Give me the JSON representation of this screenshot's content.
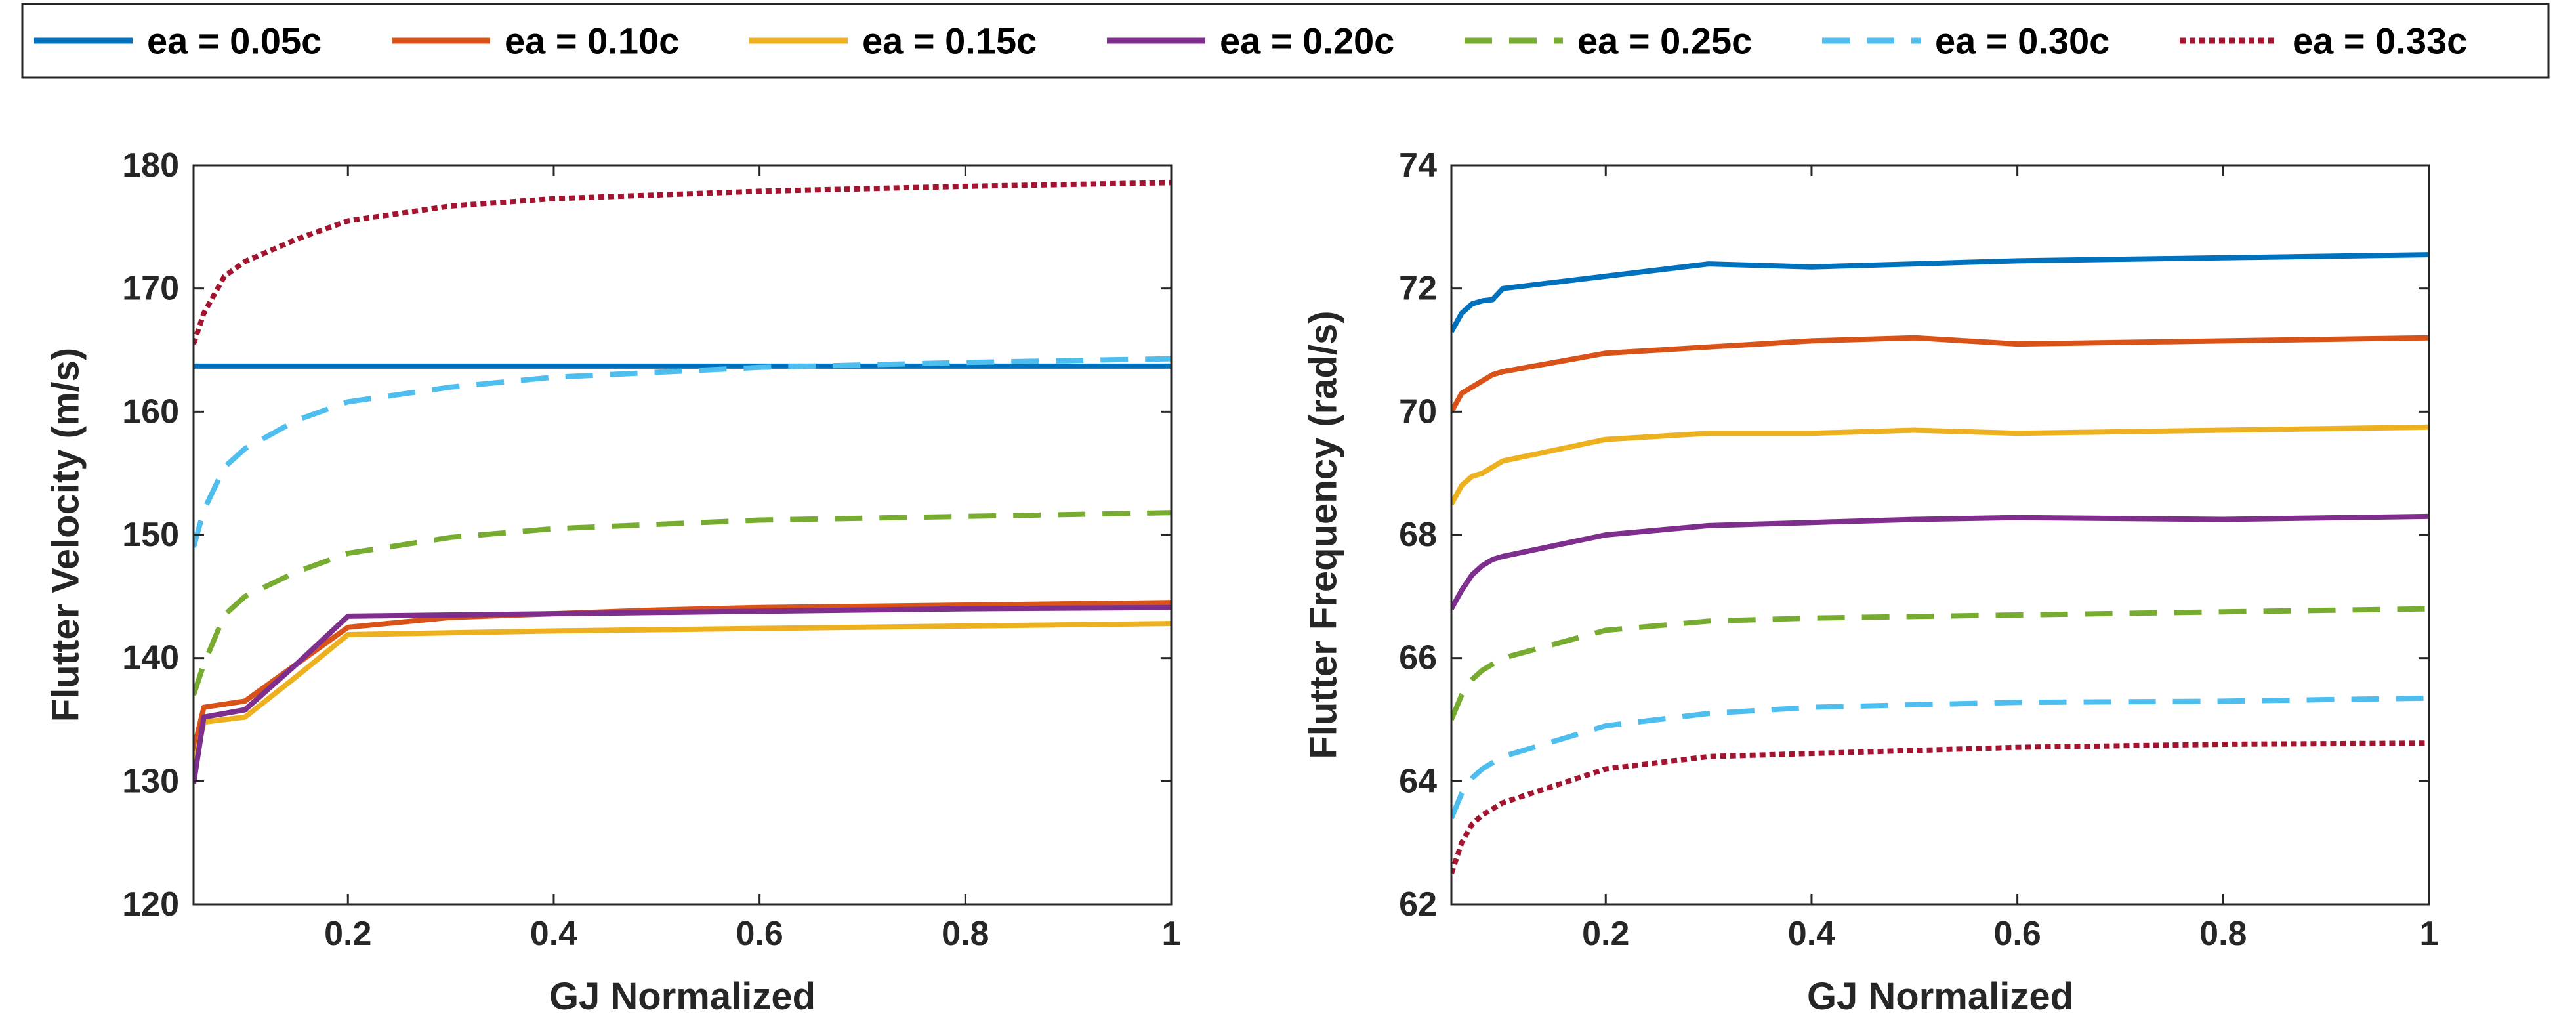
{
  "legend": {
    "entries": [
      {
        "label": "ea = 0.05c",
        "color": "#0072BD",
        "style": "solid"
      },
      {
        "label": "ea = 0.10c",
        "color": "#D95319",
        "style": "solid"
      },
      {
        "label": "ea = 0.15c",
        "color": "#EDB120",
        "style": "solid"
      },
      {
        "label": "ea = 0.20c",
        "color": "#7E2F8E",
        "style": "solid"
      },
      {
        "label": "ea = 0.25c",
        "color": "#77AC30",
        "style": "dashed"
      },
      {
        "label": "ea = 0.30c",
        "color": "#4DBEEE",
        "style": "dashed"
      },
      {
        "label": "ea = 0.33c",
        "color": "#A2142F",
        "style": "dotted"
      }
    ]
  },
  "chart_data": [
    {
      "type": "line",
      "xlabel": "GJ Normalized",
      "ylabel": "Flutter Velocity (m/s)",
      "xlim": [
        0.05,
        1
      ],
      "ylim": [
        120,
        180
      ],
      "xticks": [
        "0.2",
        "0.4",
        "0.6",
        "0.8",
        "1"
      ],
      "yticks": [
        "120",
        "130",
        "140",
        "150",
        "160",
        "170",
        "180"
      ],
      "series": [
        {
          "name": "ea = 0.05c",
          "x": [
            0.05,
            0.2,
            0.4,
            0.6,
            0.8,
            1
          ],
          "values": [
            163.7,
            163.7,
            163.7,
            163.7,
            163.7,
            163.7
          ]
        },
        {
          "name": "ea = 0.10c",
          "x": [
            0.05,
            0.06,
            0.1,
            0.15,
            0.2,
            0.3,
            0.4,
            0.5,
            0.6,
            0.8,
            1
          ],
          "values": [
            132.5,
            136.0,
            136.5,
            139.5,
            142.5,
            143.3,
            143.6,
            143.9,
            144.1,
            144.3,
            144.5
          ]
        },
        {
          "name": "ea = 0.15c",
          "x": [
            0.05,
            0.06,
            0.1,
            0.15,
            0.2,
            0.4,
            0.6,
            0.8,
            1
          ],
          "values": [
            131.0,
            134.8,
            135.2,
            138.5,
            141.9,
            142.2,
            142.4,
            142.6,
            142.8
          ]
        },
        {
          "name": "ea = 0.20c",
          "x": [
            0.05,
            0.06,
            0.1,
            0.15,
            0.2,
            0.4,
            0.6,
            0.8,
            1
          ],
          "values": [
            129.8,
            135.2,
            135.8,
            139.5,
            143.4,
            143.6,
            143.8,
            144.0,
            144.1
          ]
        },
        {
          "name": "ea = 0.25c",
          "x": [
            0.05,
            0.06,
            0.08,
            0.1,
            0.15,
            0.2,
            0.3,
            0.4,
            0.6,
            0.8,
            1
          ],
          "values": [
            137.0,
            139.5,
            143.5,
            145.0,
            147.0,
            148.5,
            149.8,
            150.5,
            151.2,
            151.5,
            151.8
          ]
        },
        {
          "name": "ea = 0.30c",
          "x": [
            0.05,
            0.06,
            0.08,
            0.1,
            0.15,
            0.2,
            0.3,
            0.4,
            0.6,
            0.8,
            1
          ],
          "values": [
            149.0,
            152.0,
            155.5,
            157.0,
            159.3,
            160.8,
            162.0,
            162.8,
            163.6,
            164.0,
            164.3
          ]
        },
        {
          "name": "ea = 0.33c",
          "x": [
            0.05,
            0.06,
            0.08,
            0.1,
            0.15,
            0.2,
            0.3,
            0.4,
            0.6,
            0.8,
            1
          ],
          "values": [
            165.5,
            168.0,
            171.0,
            172.2,
            174.0,
            175.5,
            176.7,
            177.3,
            177.9,
            178.3,
            178.6
          ]
        }
      ]
    },
    {
      "type": "line",
      "xlabel": "GJ Normalized",
      "ylabel": "Flutter Frequency (rad/s)",
      "xlim": [
        0.05,
        1
      ],
      "ylim": [
        62,
        74
      ],
      "xticks": [
        "0.2",
        "0.4",
        "0.6",
        "0.8",
        "1"
      ],
      "yticks": [
        "62",
        "64",
        "66",
        "68",
        "70",
        "72",
        "74"
      ],
      "series": [
        {
          "name": "ea = 0.05c",
          "x": [
            0.05,
            0.06,
            0.07,
            0.08,
            0.09,
            0.1,
            0.2,
            0.3,
            0.4,
            0.5,
            0.6,
            0.8,
            1
          ],
          "values": [
            71.3,
            71.6,
            71.75,
            71.8,
            71.82,
            72.0,
            72.2,
            72.4,
            72.35,
            72.4,
            72.45,
            72.5,
            72.55
          ]
        },
        {
          "name": "ea = 0.10c",
          "x": [
            0.05,
            0.06,
            0.07,
            0.08,
            0.09,
            0.1,
            0.2,
            0.3,
            0.4,
            0.5,
            0.6,
            0.8,
            1
          ],
          "values": [
            70.0,
            70.3,
            70.4,
            70.5,
            70.6,
            70.65,
            70.95,
            71.05,
            71.15,
            71.2,
            71.1,
            71.15,
            71.2
          ]
        },
        {
          "name": "ea = 0.15c",
          "x": [
            0.05,
            0.06,
            0.07,
            0.08,
            0.09,
            0.1,
            0.2,
            0.3,
            0.4,
            0.5,
            0.6,
            0.8,
            1
          ],
          "values": [
            68.5,
            68.8,
            68.95,
            69.0,
            69.1,
            69.2,
            69.55,
            69.65,
            69.65,
            69.7,
            69.65,
            69.7,
            69.75
          ]
        },
        {
          "name": "ea = 0.20c",
          "x": [
            0.05,
            0.06,
            0.07,
            0.08,
            0.09,
            0.1,
            0.2,
            0.3,
            0.4,
            0.5,
            0.6,
            0.8,
            1
          ],
          "values": [
            66.8,
            67.1,
            67.35,
            67.5,
            67.6,
            67.65,
            68.0,
            68.15,
            68.2,
            68.25,
            68.28,
            68.25,
            68.3
          ]
        },
        {
          "name": "ea = 0.25c",
          "x": [
            0.05,
            0.06,
            0.07,
            0.08,
            0.09,
            0.1,
            0.2,
            0.3,
            0.4,
            0.6,
            0.8,
            1
          ],
          "values": [
            65.0,
            65.4,
            65.65,
            65.8,
            65.9,
            66.0,
            66.45,
            66.6,
            66.65,
            66.7,
            66.75,
            66.8
          ]
        },
        {
          "name": "ea = 0.30c",
          "x": [
            0.05,
            0.06,
            0.07,
            0.08,
            0.09,
            0.1,
            0.2,
            0.3,
            0.4,
            0.6,
            0.8,
            1
          ],
          "values": [
            63.4,
            63.8,
            64.05,
            64.2,
            64.3,
            64.4,
            64.9,
            65.1,
            65.2,
            65.28,
            65.3,
            65.35
          ]
        },
        {
          "name": "ea = 0.33c",
          "x": [
            0.05,
            0.06,
            0.07,
            0.08,
            0.09,
            0.1,
            0.2,
            0.3,
            0.4,
            0.6,
            0.8,
            1
          ],
          "values": [
            62.5,
            63.0,
            63.3,
            63.45,
            63.55,
            63.65,
            64.2,
            64.4,
            64.45,
            64.55,
            64.6,
            64.62
          ]
        }
      ]
    }
  ]
}
